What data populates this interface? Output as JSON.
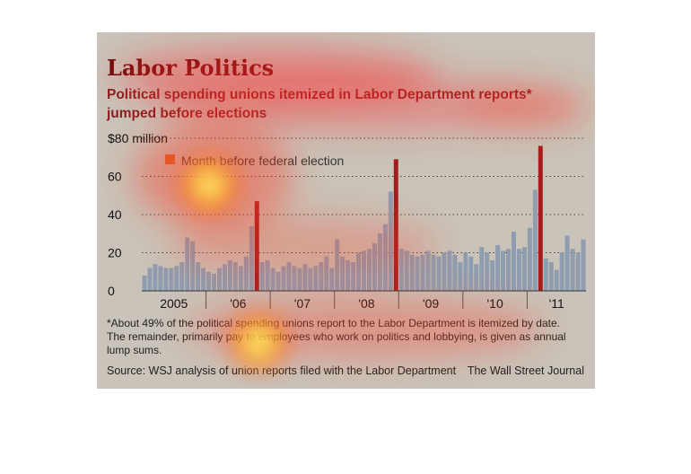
{
  "chart_data": {
    "type": "bar",
    "title": "Labor Politics",
    "subtitle_line1": "Political spending unions itemized in Labor Department reports*",
    "subtitle_line2": "jumped before elections",
    "ylim": [
      0,
      80
    ],
    "yticks": [
      0,
      20,
      40,
      60,
      80
    ],
    "ytick_labels": [
      "0",
      "20",
      "40",
      "60",
      "$80 million"
    ],
    "grid": true,
    "x_labels": [
      "2005",
      "'06",
      "'07",
      "'08",
      "'09",
      "'10",
      "'11"
    ],
    "legend": {
      "label": "Month before federal election",
      "color": "#a61c1c",
      "placement": "top-left"
    },
    "bar_color": "#8f9db0",
    "highlight_color": "#a61c1c",
    "series": [
      {
        "values": [
          8,
          12,
          14,
          13,
          12,
          12,
          13,
          15,
          28,
          26,
          15,
          12,
          10,
          9,
          12,
          14,
          16,
          15,
          13,
          18,
          34,
          47,
          15,
          16,
          12,
          10,
          13,
          15,
          13,
          12,
          14,
          12,
          13,
          15,
          18,
          12,
          27,
          18,
          16,
          15,
          20,
          21,
          22,
          25,
          30,
          35,
          52,
          69,
          22,
          21,
          19,
          18,
          19,
          21,
          19,
          18,
          20,
          21,
          19,
          15,
          20,
          18,
          14,
          23,
          20,
          16,
          24,
          21,
          22,
          31,
          22,
          23,
          33,
          53,
          76,
          17,
          15,
          11,
          20,
          29,
          22,
          20,
          27
        ]
      }
    ],
    "highlight_indices": [
      21,
      47,
      74
    ],
    "footnote_line1": "*About 49% of the political spending unions report to the Labor Department is itemized by date.",
    "footnote_line2": "The remainder, primarily pay to employees who work on politics and lobbying, is given as annual",
    "footnote_line3": "lump sums.",
    "source": "Source: WSJ analysis of union reports filed with the Labor Department",
    "credit": "The Wall Street Journal"
  }
}
